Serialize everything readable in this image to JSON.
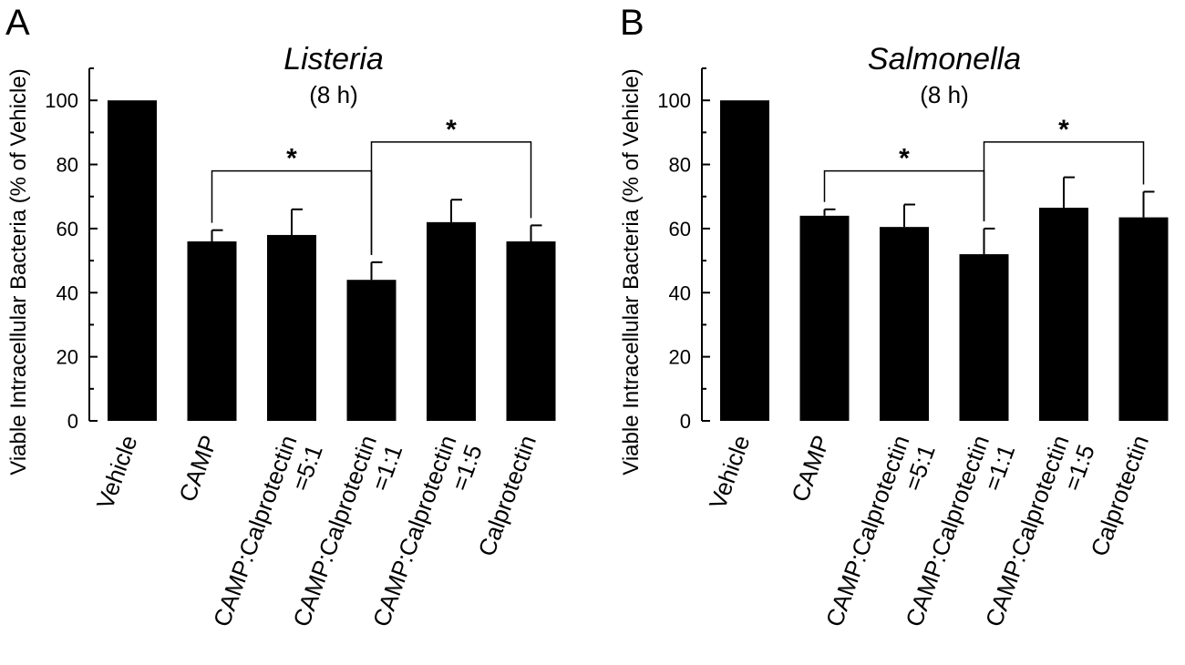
{
  "chart_data": [
    {
      "type": "bar",
      "panel": "A",
      "title": "Listeria",
      "subtitle": "(8 h)",
      "ylabel": "Viable Intracellular Bacteria (% of Vehicle)",
      "ylim": [
        0,
        110
      ],
      "yticks": [
        0,
        20,
        40,
        60,
        80,
        100
      ],
      "categories": [
        [
          "Vehicle"
        ],
        [
          "CAMP"
        ],
        [
          "CAMP:Calprotectin",
          "=5:1"
        ],
        [
          "CAMP:Calprotectin",
          "=1:1"
        ],
        [
          "CAMP:Calprotectin",
          "=1:5"
        ],
        [
          "Calprotectin"
        ]
      ],
      "values": [
        100,
        56,
        58,
        44,
        62,
        56
      ],
      "errors": [
        0,
        3.5,
        8,
        5.5,
        7,
        5
      ],
      "significance": [
        {
          "from": 1,
          "to": 3,
          "label": "*",
          "y": 78
        },
        {
          "from": 3,
          "to": 5,
          "label": "*",
          "y": 87
        }
      ]
    },
    {
      "type": "bar",
      "panel": "B",
      "title": "Salmonella",
      "subtitle": "(8 h)",
      "ylabel": "Viable Intracellular Bacteria (% of Vehicle)",
      "ylim": [
        0,
        110
      ],
      "yticks": [
        0,
        20,
        40,
        60,
        80,
        100
      ],
      "categories": [
        [
          "Vehicle"
        ],
        [
          "CAMP"
        ],
        [
          "CAMP:Calprotectin",
          "=5:1"
        ],
        [
          "CAMP:Calprotectin",
          "=1:1"
        ],
        [
          "CAMP:Calprotectin",
          "=1:5"
        ],
        [
          "Calprotectin"
        ]
      ],
      "values": [
        100,
        64,
        60.5,
        52,
        66.5,
        63.5
      ],
      "errors": [
        0,
        2,
        7,
        8,
        9.5,
        8
      ],
      "significance": [
        {
          "from": 1,
          "to": 3,
          "label": "*",
          "y": 78
        },
        {
          "from": 3,
          "to": 5,
          "label": "*",
          "y": 87
        }
      ]
    }
  ]
}
